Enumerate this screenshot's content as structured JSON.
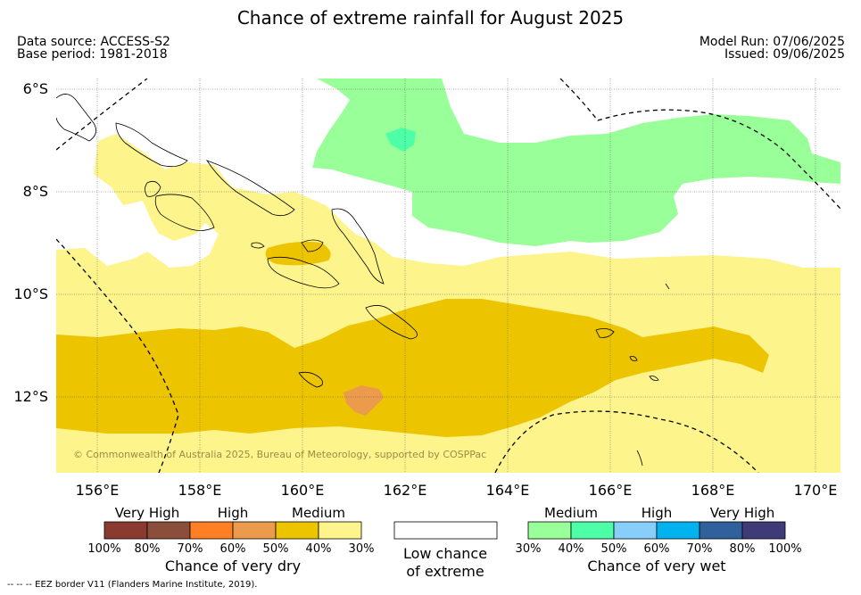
{
  "title": "Chance of extreme rainfall for August 2025",
  "data_source": "Data source: ACCESS-S2",
  "base_period": "Base period: 1981-2018",
  "model_run": "Model Run: 07/06/2025",
  "issued": "Issued: 09/06/2025",
  "copyright": "© Commonwealth of Australia 2025, Bureau of Meteorology, supported by COSPPac",
  "latitude_labels": [
    "6°S",
    "8°S",
    "10°S",
    "12°S"
  ],
  "longitude_labels": [
    "156°E",
    "158°E",
    "160°E",
    "162°E",
    "164°E",
    "166°E",
    "168°E",
    "170°E"
  ],
  "colors": {
    "dry_very_high_1": "#8b3a2f",
    "dry_very_high_2": "#8b4e3b",
    "dry_high_1": "#ff7f24",
    "dry_high_2": "#eb9b4b",
    "dry_medium_1": "#ecc500",
    "dry_medium_2": "#fdf48b",
    "wet_medium_1": "#99ff99",
    "wet_medium_2": "#4dffa6",
    "wet_high_1": "#87cefa",
    "wet_high_2": "#00b2ee",
    "wet_very_high_1": "#30619d",
    "wet_very_high_2": "#3f3a78"
  },
  "dry_legend": {
    "categories": [
      "Very High",
      "High",
      "Medium"
    ],
    "ticks": [
      "100%",
      "80%",
      "70%",
      "60%",
      "50%",
      "40%",
      "30%"
    ],
    "title": "Chance of very dry"
  },
  "neutral_legend": {
    "line1": "Low chance",
    "line2": "of extreme"
  },
  "wet_legend": {
    "categories": [
      "Medium",
      "High",
      "Very High"
    ],
    "ticks": [
      "30%",
      "40%",
      "50%",
      "60%",
      "70%",
      "80%",
      "100%"
    ],
    "title": "Chance of very wet"
  },
  "footer": "--  --  -- EEZ border V11 (Flanders Marine Institute, 2019)."
}
